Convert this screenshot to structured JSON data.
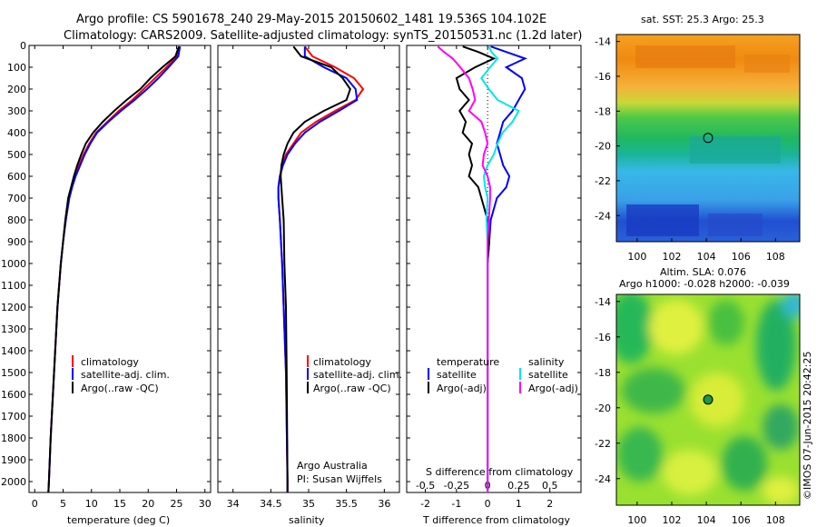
{
  "title_line1": "Argo profile: CS 5901678_240 29-May-2015 20150602_1481 19.536S 104.102E",
  "title_line2": "Climatology: CARS2009. Satellite-adjusted climatology: synTS_20150531.nc (1.2d later)",
  "timestamp": "©IMOS 07-Jun-2015 20:42:25",
  "colors": {
    "climatology": "#ff0000",
    "satellite": "#0000ff",
    "argo": "#000000",
    "salinity_satellite": "#00e5ee",
    "salinity_argo": "#ff00ff"
  },
  "chart_data": [
    {
      "type": "line",
      "name": "temperature-profile",
      "xlabel": "temperature (deg C)",
      "ylabel": "",
      "xlim": [
        -1,
        31
      ],
      "ylim": [
        2050,
        0
      ],
      "xticks": [
        0,
        5,
        10,
        15,
        20,
        25,
        30
      ],
      "yticks": [
        0,
        100,
        200,
        300,
        400,
        500,
        600,
        700,
        800,
        900,
        1000,
        1100,
        1200,
        1300,
        1400,
        1500,
        1600,
        1700,
        1800,
        1900,
        2000
      ],
      "legend": [
        "climatology",
        "satellite-adj. clim.",
        "Argo(..raw -QC)"
      ],
      "series": [
        {
          "name": "climatology",
          "depth": [
            5,
            50,
            100,
            150,
            200,
            250,
            300,
            350,
            400,
            450,
            500,
            550,
            600,
            650,
            700,
            800,
            900,
            1000,
            1200,
            1400,
            1600,
            1800,
            2000,
            2050
          ],
          "values": [
            25.5,
            25.1,
            23.2,
            21.2,
            19.2,
            17.2,
            14.8,
            12.8,
            10.8,
            9.6,
            8.6,
            7.8,
            7.0,
            6.5,
            6.0,
            5.4,
            5.0,
            4.6,
            4.0,
            3.6,
            3.2,
            2.8,
            2.5,
            2.4
          ]
        },
        {
          "name": "satellite-adj. clim.",
          "depth": [
            5,
            50,
            100,
            150,
            200,
            250,
            300,
            350,
            400,
            450,
            500,
            550,
            600,
            650,
            700,
            800,
            900,
            1000,
            1200,
            1400,
            1600,
            1800,
            2000,
            2050
          ],
          "values": [
            25.6,
            25.3,
            23.6,
            21.8,
            19.8,
            17.6,
            15.2,
            13.0,
            11.0,
            9.8,
            8.8,
            8.0,
            7.2,
            6.6,
            6.1,
            5.5,
            5.0,
            4.6,
            4.0,
            3.6,
            3.2,
            2.8,
            2.5,
            2.4
          ]
        },
        {
          "name": "Argo(..raw -QC)",
          "depth": [
            5,
            50,
            100,
            150,
            200,
            250,
            300,
            350,
            400,
            450,
            500,
            550,
            600,
            650,
            700,
            800,
            900,
            1000,
            1200,
            1400,
            1600,
            1800,
            2000,
            2050
          ],
          "values": [
            25.4,
            24.8,
            22.5,
            20.4,
            18.6,
            16.2,
            14.0,
            12.0,
            10.3,
            9.0,
            8.2,
            7.5,
            6.9,
            6.4,
            5.9,
            5.4,
            5.0,
            4.6,
            4.0,
            3.6,
            3.2,
            2.8,
            2.5,
            2.4
          ]
        }
      ]
    },
    {
      "type": "line",
      "name": "salinity-profile",
      "xlabel": "salinity",
      "xlim": [
        33.8,
        36.2
      ],
      "ylim": [
        2050,
        0
      ],
      "xticks": [
        34,
        34.5,
        35,
        35.5,
        36
      ],
      "legend": [
        "climatology",
        "satellite-adj. clim.",
        "Argo(..raw -QC)"
      ],
      "annotation": [
        "Argo Australia",
        "PI: Susan Wijffels"
      ],
      "series": [
        {
          "name": "climatology",
          "depth": [
            5,
            50,
            100,
            150,
            200,
            250,
            300,
            350,
            400,
            450,
            500,
            550,
            600,
            650,
            700,
            800,
            1000,
            1200,
            1500,
            2000,
            2050
          ],
          "values": [
            34.95,
            35.05,
            35.35,
            35.6,
            35.72,
            35.62,
            35.35,
            35.1,
            34.9,
            34.8,
            34.7,
            34.65,
            34.62,
            34.6,
            34.6,
            34.62,
            34.65,
            34.67,
            34.7,
            34.72,
            34.72
          ]
        },
        {
          "name": "satellite-adj. clim.",
          "depth": [
            5,
            50,
            100,
            150,
            200,
            250,
            300,
            350,
            400,
            450,
            500,
            550,
            600,
            650,
            700,
            800,
            1000,
            1200,
            1500,
            2000,
            2050
          ],
          "values": [
            34.95,
            34.95,
            35.2,
            35.5,
            35.62,
            35.64,
            35.4,
            35.15,
            34.95,
            34.82,
            34.72,
            34.66,
            34.62,
            34.6,
            34.6,
            34.62,
            34.65,
            34.67,
            34.7,
            34.72,
            34.72
          ]
        },
        {
          "name": "Argo(..raw -QC)",
          "depth": [
            5,
            50,
            100,
            150,
            200,
            250,
            300,
            350,
            400,
            450,
            500,
            550,
            600,
            650,
            700,
            800,
            1000,
            1200,
            1500,
            2000,
            2050
          ],
          "values": [
            34.8,
            34.9,
            35.3,
            35.45,
            35.55,
            35.5,
            35.2,
            34.95,
            34.8,
            34.72,
            34.67,
            34.64,
            34.63,
            34.64,
            34.65,
            34.67,
            34.68,
            34.7,
            34.71,
            34.72,
            34.72
          ]
        }
      ]
    },
    {
      "type": "line",
      "name": "difference-profile",
      "xlabel": "T difference from climatology",
      "xlabel2": "S difference from climatology",
      "xlim": [
        -2.6,
        3.0
      ],
      "xlim_salinity": [
        -0.65,
        0.75
      ],
      "ylim": [
        2050,
        0
      ],
      "xticks": [
        -2,
        -1,
        0,
        1,
        2
      ],
      "xticks_salinity": [
        -0.5,
        -0.25,
        0,
        0.25,
        0.5
      ],
      "xtick_labels_salinity": [
        "-0.5",
        "-0.25",
        "0",
        "0.25",
        "0.5"
      ],
      "legend_temperature_title": "temperature",
      "legend_salinity_title": "salinity",
      "legend_temperature": [
        "satellite",
        "Argo(-adj)"
      ],
      "legend_salinity": [
        "satellite",
        "Argo(-adj)"
      ],
      "series": [
        {
          "name": "temperature satellite",
          "quantity": "T",
          "depth": [
            5,
            30,
            60,
            100,
            150,
            200,
            250,
            300,
            350,
            400,
            450,
            500,
            550,
            600,
            650,
            700,
            800,
            900,
            1000,
            1200,
            1500,
            2000,
            2050
          ],
          "values": [
            0.1,
            0.6,
            1.2,
            0.6,
            1.1,
            1.2,
            1.0,
            0.8,
            0.5,
            0.4,
            0.3,
            0.4,
            0.5,
            0.7,
            0.6,
            0.3,
            0.1,
            0.05,
            0.0,
            0.0,
            0.0,
            0.0,
            0.0
          ]
        },
        {
          "name": "temperature Argo(-adj)",
          "quantity": "T",
          "depth": [
            5,
            30,
            60,
            100,
            150,
            200,
            250,
            300,
            350,
            400,
            450,
            500,
            550,
            600,
            650,
            700,
            800,
            900,
            1000,
            1200,
            1500,
            2000,
            2050
          ],
          "values": [
            -0.8,
            -0.3,
            0.2,
            -0.4,
            -1.0,
            -0.9,
            -0.6,
            -0.9,
            -0.7,
            -0.8,
            -0.5,
            -0.6,
            -0.5,
            -0.6,
            -0.3,
            -0.2,
            0.0,
            0.05,
            0.0,
            0.0,
            0.0,
            0.0,
            0.0
          ]
        },
        {
          "name": "salinity satellite",
          "quantity": "S",
          "depth": [
            5,
            30,
            60,
            100,
            150,
            200,
            250,
            300,
            350,
            400,
            450,
            500,
            550,
            600,
            650,
            700,
            800,
            900,
            1000,
            1200,
            1500,
            2000,
            2050
          ],
          "values": [
            0.01,
            0.03,
            0.08,
            0.02,
            -0.05,
            0.01,
            0.08,
            0.25,
            0.2,
            0.12,
            0.08,
            0.05,
            0.0,
            -0.03,
            -0.02,
            0.0,
            -0.01,
            0.0,
            0.0,
            0.0,
            0.0,
            0.0,
            0.0
          ]
        },
        {
          "name": "salinity Argo(-adj)",
          "quantity": "S",
          "depth": [
            5,
            30,
            60,
            100,
            150,
            200,
            250,
            300,
            350,
            400,
            450,
            500,
            550,
            600,
            650,
            700,
            800,
            900,
            1000,
            1200,
            1500,
            2000,
            2050
          ],
          "values": [
            -0.4,
            -0.35,
            -0.28,
            -0.22,
            -0.15,
            -0.12,
            -0.1,
            -0.15,
            -0.05,
            -0.02,
            0.0,
            -0.03,
            -0.04,
            0.0,
            0.02,
            0.02,
            0.01,
            0.0,
            0.0,
            0.0,
            0.0,
            0.0,
            0.0
          ]
        }
      ]
    },
    {
      "type": "heatmap",
      "name": "sst-map",
      "title": "sat. SST: 25.3 Argo: 25.3",
      "xlim": [
        98.8,
        109.4
      ],
      "ylim": [
        -25.5,
        -13.6
      ],
      "xticks": [
        100,
        102,
        104,
        106,
        108
      ],
      "yticks": [
        -14,
        -16,
        -18,
        -20,
        -22,
        -24
      ],
      "marker": [
        104.1,
        -19.54
      ]
    },
    {
      "type": "heatmap",
      "name": "sla-map",
      "title_line1": "Altim. SLA: 0.076",
      "title_line2": "Argo h1000: -0.028 h2000: -0.039",
      "xlim": [
        98.8,
        109.4
      ],
      "ylim": [
        -25.5,
        -13.6
      ],
      "xticks": [
        100,
        102,
        104,
        106,
        108
      ],
      "yticks": [
        -14,
        -16,
        -18,
        -20,
        -22,
        -24
      ],
      "marker": [
        104.1,
        -19.54
      ]
    }
  ]
}
